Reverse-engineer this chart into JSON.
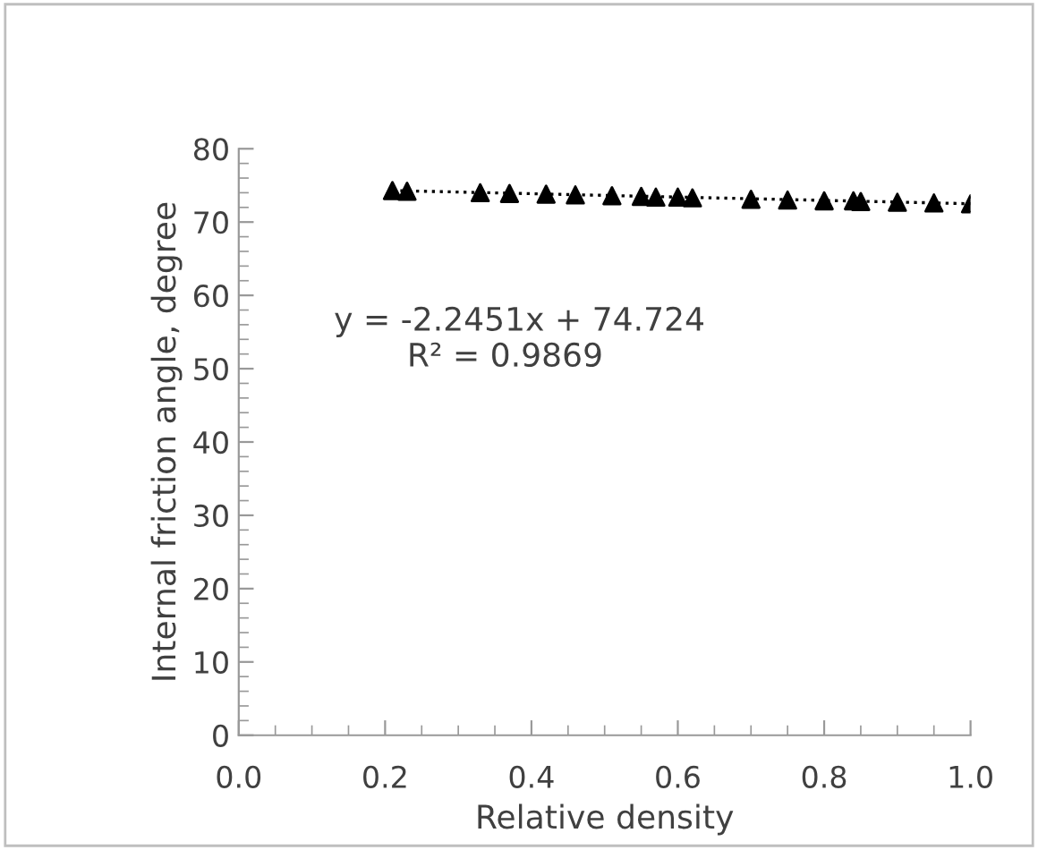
{
  "chart_data": {
    "type": "scatter",
    "xlabel": "Relative density",
    "ylabel": "Internal friction angle, degree",
    "series": [
      {
        "color": "#000000",
        "marker": "triangle",
        "x": [
          0.21,
          0.23,
          0.33,
          0.37,
          0.42,
          0.46,
          0.51,
          0.55,
          0.57,
          0.6,
          0.62,
          0.7,
          0.75,
          0.8,
          0.84,
          0.85,
          0.9,
          0.95,
          1.0
        ],
        "values": [
          74.3,
          74.2,
          74.0,
          73.9,
          73.8,
          73.7,
          73.6,
          73.5,
          73.4,
          73.4,
          73.3,
          73.1,
          73.0,
          72.9,
          72.9,
          72.8,
          72.7,
          72.6,
          72.5
        ]
      },
      {
        "type": "line",
        "color": "#000000",
        "line_style": "dotted",
        "x": [
          0.21,
          1.0
        ],
        "values": [
          74.3,
          72.5
        ]
      }
    ],
    "xlim": [
      0.0,
      1.0
    ],
    "xticks": [
      {
        "value": 0.0,
        "label": "0.0"
      },
      {
        "value": 0.2,
        "label": "0.2"
      },
      {
        "value": 0.4,
        "label": "0.4"
      },
      {
        "value": 0.6,
        "label": "0.6"
      },
      {
        "value": 0.8,
        "label": "0.8"
      },
      {
        "value": 1.0,
        "label": "1.0"
      }
    ],
    "ylim": [
      0,
      80
    ],
    "yticks": [
      0,
      10,
      20,
      30,
      40,
      50,
      60,
      70,
      80
    ],
    "annotations": [
      "y = -2.2451x + 74.724",
      "R² = 0.9869"
    ]
  }
}
